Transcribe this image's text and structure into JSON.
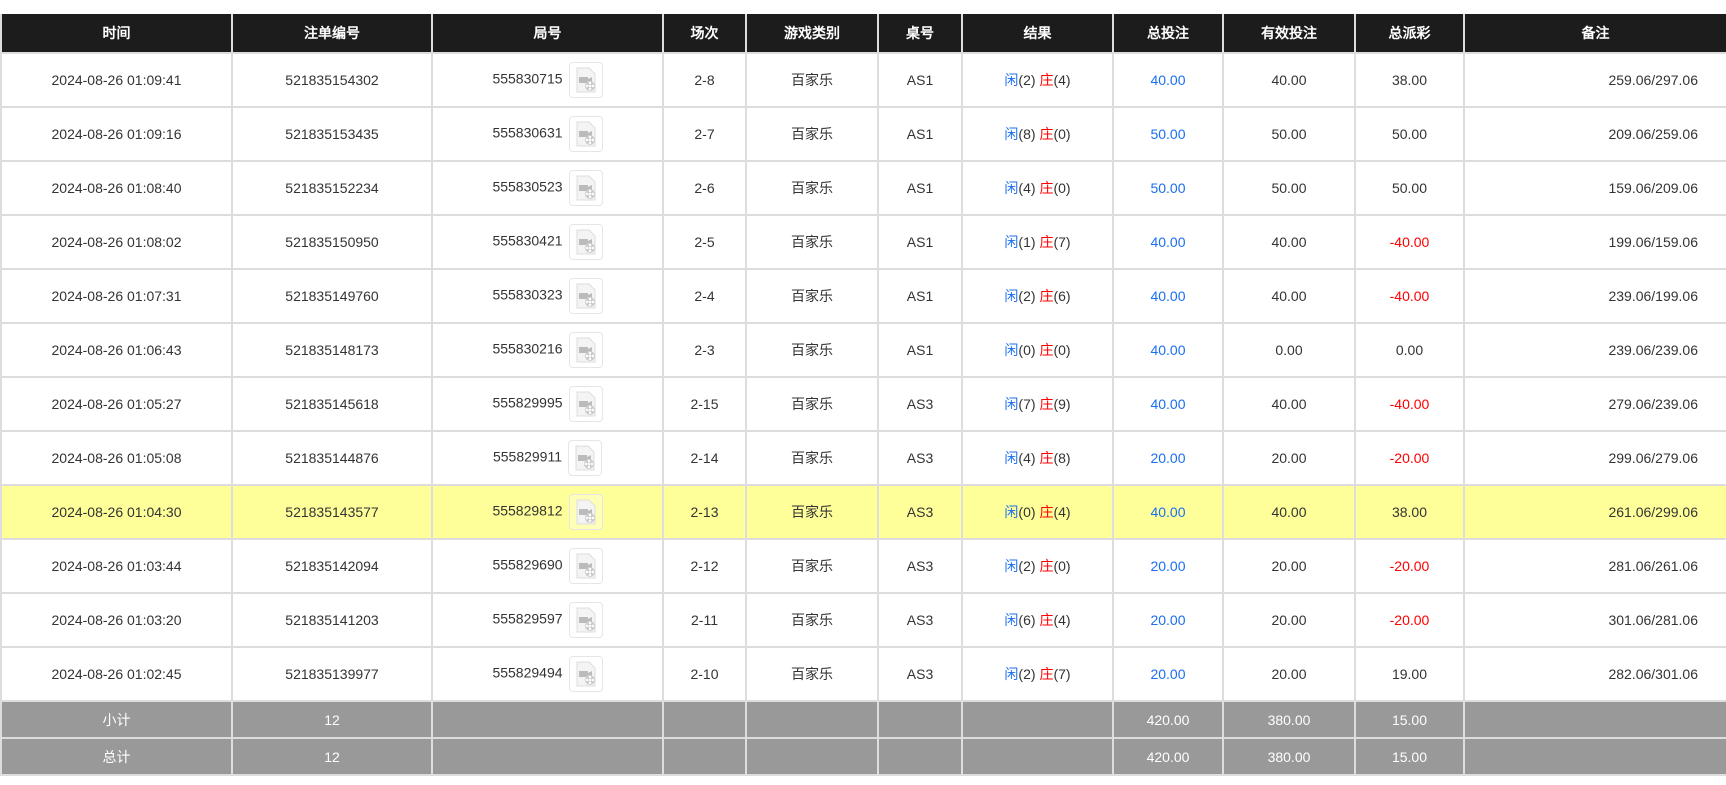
{
  "headers": [
    "时间",
    "注单编号",
    "局号",
    "场次",
    "游戏类别",
    "桌号",
    "结果",
    "总投注",
    "有效投注",
    "总派彩",
    "备注"
  ],
  "result_labels": {
    "player": "闲",
    "banker": "庄"
  },
  "colors": {
    "header_bg": "#1c1c1c",
    "highlight_row": "#ffff99",
    "summary_bg": "#999999",
    "positive_blue": "#1a6ff0",
    "negative_red": "#ff0000"
  },
  "rows": [
    {
      "time": "2024-08-26 01:09:41",
      "bet_id": "521835154302",
      "round": "555830715",
      "shoe": "2-8",
      "game": "百家乐",
      "table": "AS1",
      "player": "(2)",
      "banker": "(4)",
      "total_bet": "40.00",
      "valid_bet": "40.00",
      "payout": "38.00",
      "payout_negative": false,
      "note": "259.06/297.06",
      "highlighted": false
    },
    {
      "time": "2024-08-26 01:09:16",
      "bet_id": "521835153435",
      "round": "555830631",
      "shoe": "2-7",
      "game": "百家乐",
      "table": "AS1",
      "player": "(8)",
      "banker": "(0)",
      "total_bet": "50.00",
      "valid_bet": "50.00",
      "payout": "50.00",
      "payout_negative": false,
      "note": "209.06/259.06",
      "highlighted": false
    },
    {
      "time": "2024-08-26 01:08:40",
      "bet_id": "521835152234",
      "round": "555830523",
      "shoe": "2-6",
      "game": "百家乐",
      "table": "AS1",
      "player": "(4)",
      "banker": "(0)",
      "total_bet": "50.00",
      "valid_bet": "50.00",
      "payout": "50.00",
      "payout_negative": false,
      "note": "159.06/209.06",
      "highlighted": false
    },
    {
      "time": "2024-08-26 01:08:02",
      "bet_id": "521835150950",
      "round": "555830421",
      "shoe": "2-5",
      "game": "百家乐",
      "table": "AS1",
      "player": "(1)",
      "banker": "(7)",
      "total_bet": "40.00",
      "valid_bet": "40.00",
      "payout": "-40.00",
      "payout_negative": true,
      "note": "199.06/159.06",
      "highlighted": false
    },
    {
      "time": "2024-08-26 01:07:31",
      "bet_id": "521835149760",
      "round": "555830323",
      "shoe": "2-4",
      "game": "百家乐",
      "table": "AS1",
      "player": "(2)",
      "banker": "(6)",
      "total_bet": "40.00",
      "valid_bet": "40.00",
      "payout": "-40.00",
      "payout_negative": true,
      "note": "239.06/199.06",
      "highlighted": false
    },
    {
      "time": "2024-08-26 01:06:43",
      "bet_id": "521835148173",
      "round": "555830216",
      "shoe": "2-3",
      "game": "百家乐",
      "table": "AS1",
      "player": "(0)",
      "banker": "(0)",
      "total_bet": "40.00",
      "valid_bet": "0.00",
      "payout": "0.00",
      "payout_negative": false,
      "note": "239.06/239.06",
      "highlighted": false
    },
    {
      "time": "2024-08-26 01:05:27",
      "bet_id": "521835145618",
      "round": "555829995",
      "shoe": "2-15",
      "game": "百家乐",
      "table": "AS3",
      "player": "(7)",
      "banker": "(9)",
      "total_bet": "40.00",
      "valid_bet": "40.00",
      "payout": "-40.00",
      "payout_negative": true,
      "note": "279.06/239.06",
      "highlighted": false
    },
    {
      "time": "2024-08-26 01:05:08",
      "bet_id": "521835144876",
      "round": "555829911",
      "shoe": "2-14",
      "game": "百家乐",
      "table": "AS3",
      "player": "(4)",
      "banker": "(8)",
      "total_bet": "20.00",
      "valid_bet": "20.00",
      "payout": "-20.00",
      "payout_negative": true,
      "note": "299.06/279.06",
      "highlighted": false
    },
    {
      "time": "2024-08-26 01:04:30",
      "bet_id": "521835143577",
      "round": "555829812",
      "shoe": "2-13",
      "game": "百家乐",
      "table": "AS3",
      "player": "(0)",
      "banker": "(4)",
      "total_bet": "40.00",
      "valid_bet": "40.00",
      "payout": "38.00",
      "payout_negative": false,
      "note": "261.06/299.06",
      "highlighted": true
    },
    {
      "time": "2024-08-26 01:03:44",
      "bet_id": "521835142094",
      "round": "555829690",
      "shoe": "2-12",
      "game": "百家乐",
      "table": "AS3",
      "player": "(2)",
      "banker": "(0)",
      "total_bet": "20.00",
      "valid_bet": "20.00",
      "payout": "-20.00",
      "payout_negative": true,
      "note": "281.06/261.06",
      "highlighted": false
    },
    {
      "time": "2024-08-26 01:03:20",
      "bet_id": "521835141203",
      "round": "555829597",
      "shoe": "2-11",
      "game": "百家乐",
      "table": "AS3",
      "player": "(6)",
      "banker": "(4)",
      "total_bet": "20.00",
      "valid_bet": "20.00",
      "payout": "-20.00",
      "payout_negative": true,
      "note": "301.06/281.06",
      "highlighted": false
    },
    {
      "time": "2024-08-26 01:02:45",
      "bet_id": "521835139977",
      "round": "555829494",
      "shoe": "2-10",
      "game": "百家乐",
      "table": "AS3",
      "player": "(2)",
      "banker": "(7)",
      "total_bet": "20.00",
      "valid_bet": "20.00",
      "payout": "19.00",
      "payout_negative": false,
      "note": "282.06/301.06",
      "highlighted": false
    }
  ],
  "summary": [
    {
      "label": "小计",
      "count": "12",
      "total_bet": "420.00",
      "valid_bet": "380.00",
      "payout": "15.00"
    },
    {
      "label": "总计",
      "count": "12",
      "total_bet": "420.00",
      "valid_bet": "380.00",
      "payout": "15.00"
    }
  ]
}
